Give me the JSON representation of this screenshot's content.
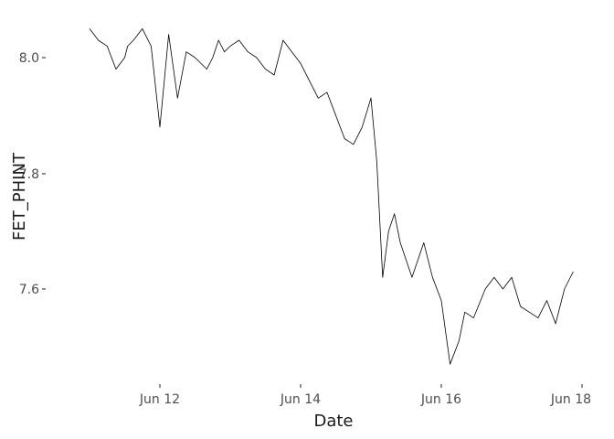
{
  "chart_data": {
    "type": "line",
    "xlabel": "Date",
    "ylabel": "FET_PHINT",
    "x_ticks": [
      "Jun 12",
      "Jun 14",
      "Jun 16",
      "Jun 18"
    ],
    "y_ticks": [
      "7.6",
      "7.8",
      "8.0"
    ],
    "grid": false,
    "legend": "none",
    "line_color": "#000000",
    "x_range": [
      "2022-06-11 00:00",
      "2022-06-18 00:00"
    ],
    "ylim": [
      7.45,
      8.08
    ],
    "series": [
      {
        "x": [
          "2022-06-11 00:00",
          "2022-06-11 03:00",
          "2022-06-11 06:00",
          "2022-06-11 09:00",
          "2022-06-11 12:00",
          "2022-06-11 13:00",
          "2022-06-11 15:00",
          "2022-06-11 18:00",
          "2022-06-11 21:00",
          "2022-06-12 00:00",
          "2022-06-12 03:00",
          "2022-06-12 06:00",
          "2022-06-12 09:00",
          "2022-06-12 12:00",
          "2022-06-12 16:00",
          "2022-06-12 18:00",
          "2022-06-12 20:00",
          "2022-06-12 22:00",
          "2022-06-13 00:00",
          "2022-06-13 03:00",
          "2022-06-13 06:00",
          "2022-06-13 09:00",
          "2022-06-13 12:00",
          "2022-06-13 15:00",
          "2022-06-13 18:00",
          "2022-06-13 21:00",
          "2022-06-14 00:00",
          "2022-06-14 03:00",
          "2022-06-14 06:00",
          "2022-06-14 09:00",
          "2022-06-14 12:00",
          "2022-06-14 15:00",
          "2022-06-14 18:00",
          "2022-06-14 21:00",
          "2022-06-15 00:00",
          "2022-06-15 02:00",
          "2022-06-15 04:00",
          "2022-06-15 06:00",
          "2022-06-15 08:00",
          "2022-06-15 10:00",
          "2022-06-15 14:00",
          "2022-06-15 18:00",
          "2022-06-15 21:00",
          "2022-06-16 00:00",
          "2022-06-16 03:00",
          "2022-06-16 06:00",
          "2022-06-16 08:00",
          "2022-06-16 11:00",
          "2022-06-16 15:00",
          "2022-06-16 18:00",
          "2022-06-16 21:00",
          "2022-06-17 00:00",
          "2022-06-17 03:00",
          "2022-06-17 06:00",
          "2022-06-17 09:00",
          "2022-06-17 12:00",
          "2022-06-17 15:00",
          "2022-06-17 18:00",
          "2022-06-17 21:00"
        ],
        "y": [
          8.05,
          8.03,
          8.02,
          7.98,
          8.0,
          8.02,
          8.03,
          8.05,
          8.02,
          7.88,
          8.04,
          7.93,
          8.01,
          8.0,
          7.98,
          8.0,
          8.03,
          8.01,
          8.02,
          8.03,
          8.01,
          8.0,
          7.98,
          7.97,
          8.03,
          8.01,
          7.99,
          7.96,
          7.93,
          7.94,
          7.9,
          7.86,
          7.85,
          7.88,
          7.93,
          7.82,
          7.62,
          7.7,
          7.73,
          7.68,
          7.62,
          7.68,
          7.62,
          7.58,
          7.47,
          7.51,
          7.56,
          7.55,
          7.6,
          7.62,
          7.6,
          7.62,
          7.57,
          7.56,
          7.55,
          7.58,
          7.54,
          7.6,
          7.63
        ]
      }
    ]
  }
}
